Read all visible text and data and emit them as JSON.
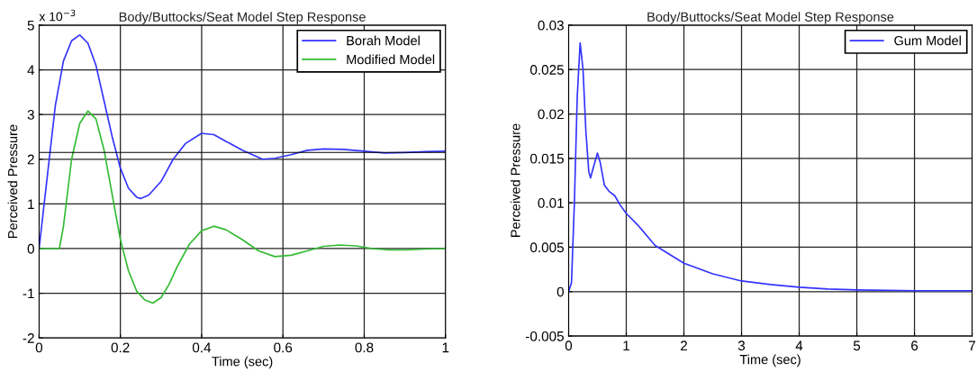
{
  "chart_data": [
    {
      "type": "line",
      "title": "Body/Buttocks/Seat Model Step Response",
      "xlabel": "Time (sec)",
      "ylabel": "Perceived Pressure",
      "annotations": [
        "x 10$^{−3}$"
      ],
      "xlim": [
        0,
        1
      ],
      "xticks": [
        0,
        0.2,
        0.4,
        0.6,
        0.8,
        1
      ],
      "ylim": [
        -2,
        5
      ],
      "yticks": [
        -2,
        -1,
        0,
        1,
        2,
        3,
        4,
        5
      ],
      "grid": true,
      "legend": "top right",
      "line_style": "solid",
      "ref_lines": [
        {
          "axis": "y",
          "value": 2.15,
          "color": "#000000"
        }
      ],
      "series": [
        {
          "name": "Borah Model",
          "color": "#3333ff",
          "x": [
            0,
            0.02,
            0.04,
            0.06,
            0.08,
            0.1,
            0.12,
            0.14,
            0.16,
            0.18,
            0.2,
            0.22,
            0.24,
            0.25,
            0.27,
            0.3,
            0.33,
            0.36,
            0.4,
            0.43,
            0.46,
            0.5,
            0.55,
            0.58,
            0.62,
            0.66,
            0.7,
            0.75,
            0.8,
            0.85,
            0.9,
            0.95,
            1.0
          ],
          "values": [
            0,
            1.6,
            3.2,
            4.2,
            4.65,
            4.78,
            4.6,
            4.1,
            3.3,
            2.5,
            1.8,
            1.35,
            1.15,
            1.12,
            1.2,
            1.5,
            2.0,
            2.35,
            2.58,
            2.55,
            2.4,
            2.2,
            2.0,
            2.02,
            2.1,
            2.2,
            2.23,
            2.22,
            2.18,
            2.14,
            2.15,
            2.17,
            2.18
          ]
        },
        {
          "name": "Modified Model",
          "color": "#33bb33",
          "x": [
            0,
            0.05,
            0.06,
            0.08,
            0.1,
            0.12,
            0.14,
            0.16,
            0.18,
            0.2,
            0.22,
            0.24,
            0.26,
            0.28,
            0.3,
            0.32,
            0.34,
            0.37,
            0.4,
            0.43,
            0.46,
            0.5,
            0.54,
            0.58,
            0.62,
            0.66,
            0.7,
            0.74,
            0.78,
            0.82,
            0.86,
            0.9,
            0.95,
            1.0
          ],
          "values": [
            0,
            0,
            0.5,
            2.0,
            2.8,
            3.08,
            2.9,
            2.2,
            1.2,
            0.2,
            -0.5,
            -0.95,
            -1.15,
            -1.22,
            -1.1,
            -0.8,
            -0.4,
            0.1,
            0.4,
            0.5,
            0.42,
            0.2,
            -0.05,
            -0.18,
            -0.15,
            -0.05,
            0.05,
            0.08,
            0.06,
            0.0,
            -0.03,
            -0.03,
            -0.01,
            0
          ]
        }
      ]
    },
    {
      "type": "line",
      "title": "Body/Buttocks/Seat Model Step Response",
      "xlabel": "Time (sec)",
      "ylabel": "Perceived Pressure",
      "xlim": [
        0,
        7
      ],
      "xticks": [
        0,
        1,
        2,
        3,
        4,
        5,
        6,
        7
      ],
      "ylim": [
        -0.005,
        0.03
      ],
      "yticks": [
        -0.005,
        0,
        0.005,
        0.01,
        0.015,
        0.02,
        0.025,
        0.03
      ],
      "grid": true,
      "legend": "top right",
      "line_style": "solid",
      "series": [
        {
          "name": "Gum Model",
          "color": "#3333ff",
          "x": [
            0,
            0.05,
            0.1,
            0.15,
            0.2,
            0.25,
            0.3,
            0.35,
            0.38,
            0.43,
            0.5,
            0.55,
            0.62,
            0.7,
            0.8,
            0.9,
            1.0,
            1.2,
            1.5,
            2,
            2.5,
            3,
            3.5,
            4,
            4.5,
            5,
            6,
            7
          ],
          "values": [
            0,
            0.001,
            0.01,
            0.022,
            0.028,
            0.025,
            0.018,
            0.0135,
            0.0128,
            0.014,
            0.0156,
            0.0145,
            0.012,
            0.0113,
            0.0108,
            0.0097,
            0.0088,
            0.0075,
            0.0052,
            0.0032,
            0.002,
            0.0012,
            0.0008,
            0.0005,
            0.0003,
            0.0002,
            0.0001,
            0.0001
          ]
        }
      ]
    }
  ]
}
